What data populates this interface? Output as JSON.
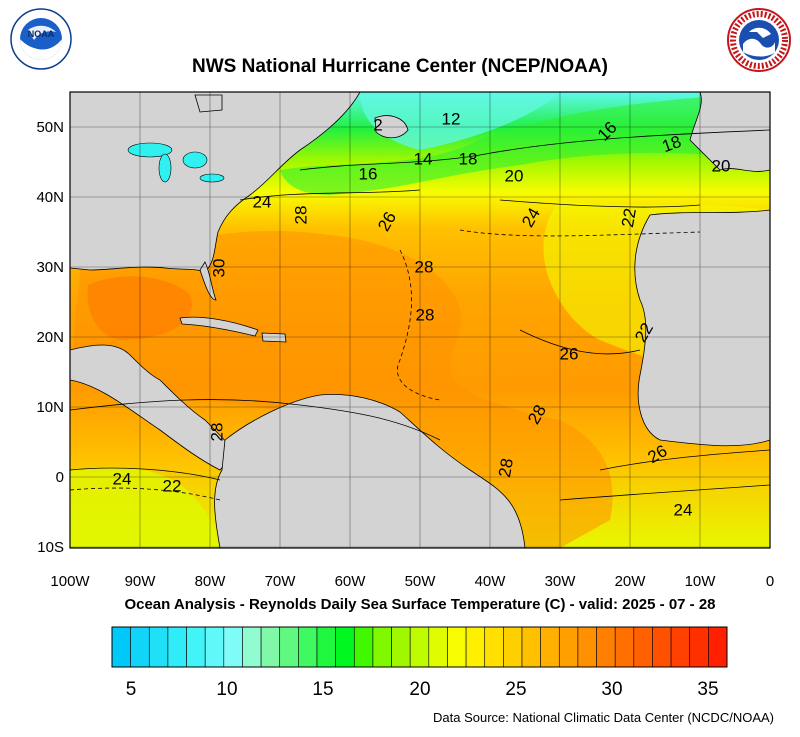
{
  "header": {
    "title": "NWS National Hurricane Center (NCEP/NOAA)",
    "left_logo": {
      "name": "noaa-logo",
      "text": "NOAA",
      "ring_text": "NATIONAL OCEANIC AND ATMOSPHERIC ADMINISTRATION · U.S. DEPARTMENT OF COMMERCE"
    },
    "right_logo": {
      "name": "nws-logo",
      "ring_text": "NATIONAL WEATHER SERVICE"
    }
  },
  "map": {
    "lat_labels": [
      "50N",
      "40N",
      "30N",
      "20N",
      "10N",
      "0",
      "10S"
    ],
    "lon_labels": [
      "100W",
      "90W",
      "80W",
      "70W",
      "60W",
      "50W",
      "40W",
      "30W",
      "20W",
      "10W",
      "0"
    ],
    "contour_labels": [
      {
        "text": "12"
      },
      {
        "text": "2"
      },
      {
        "text": "14"
      },
      {
        "text": "18"
      },
      {
        "text": "16"
      },
      {
        "text": "16"
      },
      {
        "text": "18"
      },
      {
        "text": "20"
      },
      {
        "text": "20"
      },
      {
        "text": "24"
      },
      {
        "text": "28"
      },
      {
        "text": "26"
      },
      {
        "text": "24"
      },
      {
        "text": "22"
      },
      {
        "text": "30"
      },
      {
        "text": "28"
      },
      {
        "text": "28"
      },
      {
        "text": "22"
      },
      {
        "text": "26"
      },
      {
        "text": "28"
      },
      {
        "text": "28"
      },
      {
        "text": "28"
      },
      {
        "text": "26"
      },
      {
        "text": "24"
      },
      {
        "text": "22"
      },
      {
        "text": "24"
      }
    ],
    "colors": {
      "land": "#d3d3d3",
      "warm": "#ff8c00",
      "orange": "#ffa500",
      "yellow": "#ffff00",
      "green": "#33ff33",
      "cyan": "#80ffff"
    }
  },
  "subtitle": "Ocean Analysis - Reynolds Daily Sea Surface Temperature (C) - valid: 2025 - 07 - 28",
  "colorbar": {
    "labels": [
      "5",
      "10",
      "15",
      "20",
      "25",
      "30",
      "35"
    ],
    "colors": [
      "#00c8f8",
      "#10d4f8",
      "#20e0f8",
      "#30ecf8",
      "#40f4f8",
      "#60f8f8",
      "#80fcf8",
      "#90fcd0",
      "#80f8a8",
      "#60f880",
      "#40f860",
      "#20f840",
      "#00f820",
      "#40f800",
      "#80f800",
      "#a0f800",
      "#c0fc00",
      "#e0fc00",
      "#f8fc00",
      "#fff000",
      "#ffe000",
      "#ffd000",
      "#ffc000",
      "#ffb000",
      "#ffa000",
      "#ff9000",
      "#ff8000",
      "#ff7000",
      "#ff6000",
      "#ff5000",
      "#ff4000",
      "#ff3000",
      "#ff2000"
    ]
  },
  "footer": {
    "source": "Data Source: National Climatic Data Center (NCDC/NOAA)"
  }
}
